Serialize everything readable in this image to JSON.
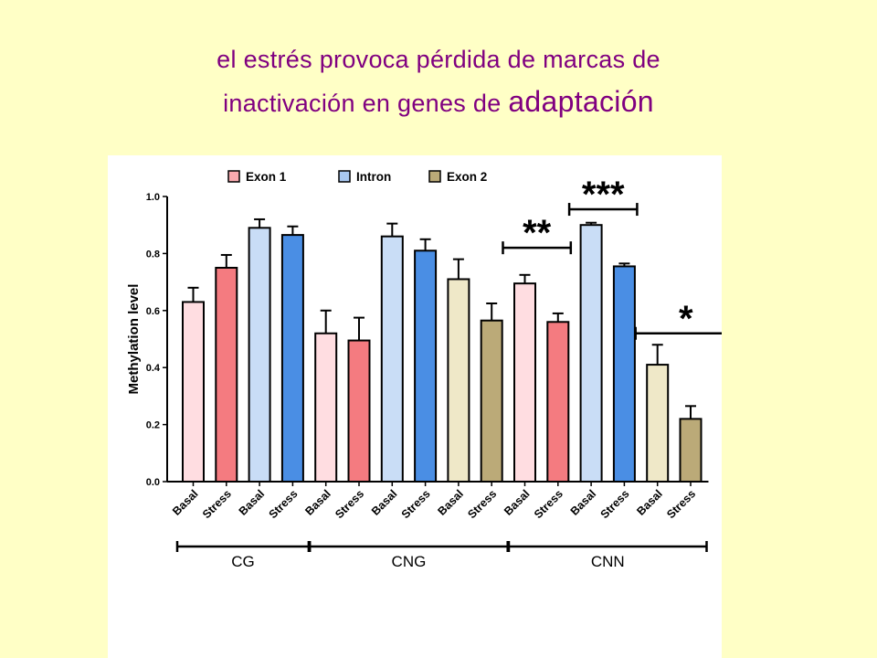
{
  "title": {
    "line1": "el estrés provoca pérdida de marcas de",
    "line2_part1": "inactivación en genes de",
    "line2_part2": "adaptación"
  },
  "colors": {
    "background": "#FFFFC6",
    "title": "#800080",
    "Exon 1": {
      "Basal": "#FFDDE1",
      "Stress": "#F47B80"
    },
    "Intron": {
      "Basal": "#C9DDF6",
      "Stress": "#4A8EE4"
    },
    "Exon 2": {
      "Basal": "#EFE8C8",
      "Stress": "#BBAA78"
    }
  },
  "chart_data": {
    "type": "bar",
    "title": "",
    "xlabel": "",
    "ylabel": "Methylation level",
    "ylim": [
      0,
      1.0
    ],
    "yticks": [
      "0.0",
      "0.2",
      "0.4",
      "0.6",
      "0.8",
      "1.0"
    ],
    "legend": [
      "Exon 1",
      "Intron",
      "Exon 2"
    ],
    "legend_position": "top",
    "grid": false,
    "bars": [
      {
        "group": "CG",
        "region": "Exon 1",
        "condition": "Basal",
        "value": 0.63,
        "error": 0.05
      },
      {
        "group": "CG",
        "region": "Exon 1",
        "condition": "Stress",
        "value": 0.75,
        "error": 0.045
      },
      {
        "group": "CG",
        "region": "Intron",
        "condition": "Basal",
        "value": 0.89,
        "error": 0.03
      },
      {
        "group": "CG",
        "region": "Intron",
        "condition": "Stress",
        "value": 0.865,
        "error": 0.03
      },
      {
        "group": "CNG",
        "region": "Exon 1",
        "condition": "Basal",
        "value": 0.52,
        "error": 0.08
      },
      {
        "group": "CNG",
        "region": "Exon 1",
        "condition": "Stress",
        "value": 0.495,
        "error": 0.08
      },
      {
        "group": "CNG",
        "region": "Intron",
        "condition": "Basal",
        "value": 0.86,
        "error": 0.045
      },
      {
        "group": "CNG",
        "region": "Intron",
        "condition": "Stress",
        "value": 0.81,
        "error": 0.04
      },
      {
        "group": "CNG",
        "region": "Exon 2",
        "condition": "Basal",
        "value": 0.71,
        "error": 0.07
      },
      {
        "group": "CNG",
        "region": "Exon 2",
        "condition": "Stress",
        "value": 0.565,
        "error": 0.06
      },
      {
        "group": "CNN",
        "region": "Exon 1",
        "condition": "Basal",
        "value": 0.695,
        "error": 0.03
      },
      {
        "group": "CNN",
        "region": "Exon 1",
        "condition": "Stress",
        "value": 0.56,
        "error": 0.03
      },
      {
        "group": "CNN",
        "region": "Intron",
        "condition": "Basal",
        "value": 0.9,
        "error": 0.008
      },
      {
        "group": "CNN",
        "region": "Intron",
        "condition": "Stress",
        "value": 0.755,
        "error": 0.01
      },
      {
        "group": "CNN",
        "region": "Exon 2",
        "condition": "Basal",
        "value": 0.41,
        "error": 0.07
      },
      {
        "group": "CNN",
        "region": "Exon 2",
        "condition": "Stress",
        "value": 0.22,
        "error": 0.045
      }
    ],
    "groups": [
      {
        "label": "CG",
        "first_bar": 0,
        "last_bar": 3
      },
      {
        "label": "CNG",
        "first_bar": 4,
        "last_bar": 9
      },
      {
        "label": "CNN",
        "first_bar": 10,
        "last_bar": 15
      }
    ],
    "significance": [
      {
        "label": "**",
        "from_bar": 10,
        "to_bar": 11,
        "y": 0.82
      },
      {
        "label": "***",
        "from_bar": 12,
        "to_bar": 13,
        "y": 0.955
      },
      {
        "label": "*",
        "from_bar": 14,
        "to_bar": 15,
        "y": 0.52
      }
    ]
  }
}
